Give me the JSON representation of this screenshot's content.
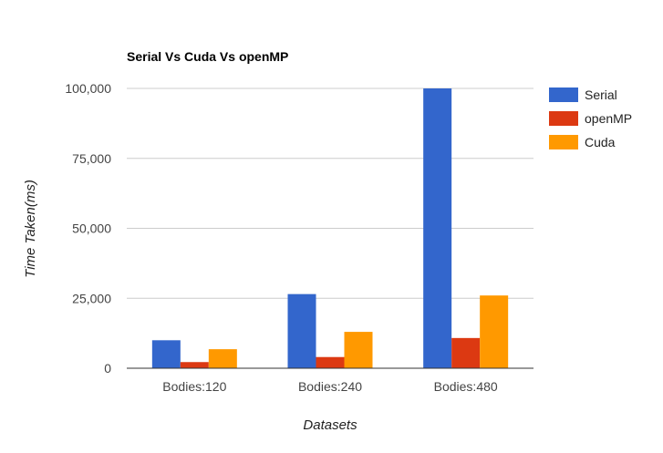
{
  "chart_data": {
    "type": "bar",
    "title": "Serial Vs Cuda Vs openMP",
    "xlabel": "Datasets",
    "ylabel": "Time Taken(ms)",
    "categories": [
      "Bodies:120",
      "Bodies:240",
      "Bodies:480"
    ],
    "series": [
      {
        "name": "Serial",
        "color": "#3366cc",
        "values": [
          10000,
          26500,
          100000
        ]
      },
      {
        "name": "openMP",
        "color": "#dc3912",
        "values": [
          2200,
          4000,
          10800
        ]
      },
      {
        "name": "Cuda",
        "color": "#ff9900",
        "values": [
          6800,
          13000,
          26000
        ]
      }
    ],
    "ylim": [
      0,
      100000
    ],
    "yticks": [
      "0",
      "25,000",
      "50,000",
      "75,000",
      "100,000"
    ],
    "ytick_values": [
      0,
      25000,
      50000,
      75000,
      100000
    ],
    "grid": true,
    "legend_position": "right"
  }
}
